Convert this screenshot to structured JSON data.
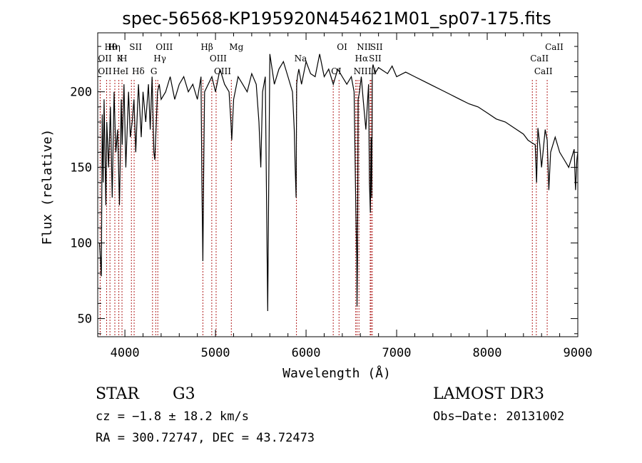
{
  "chart_data": {
    "type": "line",
    "title": "spec-56568-KP195920N454621M01_sp07-175.fits",
    "xlabel": "Wavelength (Å)",
    "ylabel": "Flux (relative)",
    "xlim": [
      3700,
      9000
    ],
    "ylim": [
      38,
      239
    ],
    "xticks": [
      4000,
      5000,
      6000,
      7000,
      8000,
      9000
    ],
    "yticks": [
      50,
      100,
      150,
      200
    ],
    "grid": false,
    "series": [
      {
        "name": "spectrum",
        "x": [
          3720,
          3740,
          3750,
          3760,
          3770,
          3790,
          3800,
          3820,
          3840,
          3860,
          3880,
          3900,
          3920,
          3940,
          3960,
          3970,
          3990,
          4010,
          4040,
          4060,
          4080,
          4100,
          4120,
          4150,
          4180,
          4200,
          4230,
          4260,
          4280,
          4300,
          4320,
          4330,
          4340,
          4360,
          4380,
          4400,
          4450,
          4500,
          4550,
          4600,
          4650,
          4700,
          4750,
          4800,
          4840,
          4850,
          4861,
          4870,
          4880,
          4920,
          4960,
          5000,
          5050,
          5100,
          5150,
          5170,
          5180,
          5200,
          5250,
          5300,
          5350,
          5400,
          5450,
          5480,
          5500,
          5520,
          5550,
          5570,
          5577,
          5585,
          5600,
          5650,
          5700,
          5750,
          5800,
          5850,
          5870,
          5880,
          5890,
          5896,
          5905,
          5920,
          5950,
          6000,
          6050,
          6100,
          6150,
          6200,
          6250,
          6300,
          6350,
          6400,
          6450,
          6500,
          6530,
          6550,
          6560,
          6563,
          6568,
          6575,
          6590,
          6610,
          6630,
          6660,
          6690,
          6700,
          6710,
          6717,
          6725,
          6731,
          6740,
          6760,
          6800,
          6850,
          6900,
          6950,
          7000,
          7100,
          7200,
          7300,
          7400,
          7500,
          7600,
          7700,
          7800,
          7900,
          8000,
          8100,
          8200,
          8300,
          8400,
          8450,
          8500,
          8530,
          8545,
          8560,
          8580,
          8600,
          8640,
          8662,
          8680,
          8700,
          8750,
          8800,
          8850,
          8900,
          8940,
          8960,
          8975,
          8990,
          9000
        ],
        "values": [
          100,
          78,
          185,
          140,
          195,
          125,
          180,
          150,
          190,
          130,
          200,
          160,
          175,
          125,
          195,
          165,
          205,
          150,
          200,
          170,
          180,
          195,
          160,
          205,
          170,
          200,
          180,
          205,
          175,
          210,
          160,
          155,
          170,
          200,
          205,
          195,
          200,
          210,
          195,
          205,
          210,
          200,
          205,
          195,
          210,
          140,
          88,
          150,
          200,
          205,
          210,
          200,
          215,
          205,
          200,
          180,
          168,
          195,
          210,
          205,
          200,
          212,
          205,
          180,
          150,
          200,
          210,
          90,
          55,
          120,
          225,
          205,
          215,
          220,
          210,
          200,
          175,
          150,
          130,
          205,
          210,
          215,
          205,
          220,
          212,
          210,
          225,
          210,
          215,
          205,
          215,
          210,
          205,
          210,
          200,
          120,
          90,
          58,
          90,
          195,
          200,
          210,
          195,
          175,
          205,
          140,
          120,
          170,
          130,
          215,
          218,
          212,
          216,
          214,
          212,
          217,
          210,
          213,
          210,
          207,
          204,
          201,
          198,
          195,
          192,
          190,
          186,
          182,
          180,
          176,
          172,
          168,
          166,
          165,
          140,
          176,
          165,
          150,
          175,
          168,
          135,
          160,
          170,
          160,
          155,
          150,
          158,
          162,
          135,
          155,
          160
        ],
        "stroke": "#000000"
      }
    ],
    "line_markers": [
      {
        "label": "Hθ",
        "wavelength": 3798
      },
      {
        "label": "OII",
        "wavelength": 3727
      },
      {
        "label": "OII",
        "wavelength": 3727
      },
      {
        "label": "Hη",
        "wavelength": 3835
      },
      {
        "label": "K",
        "wavelength": 3933
      },
      {
        "label": "HeI",
        "wavelength": 3889
      },
      {
        "label": "SII",
        "wavelength": 4072
      },
      {
        "label": "H",
        "wavelength": 3968
      },
      {
        "label": "Hδ",
        "wavelength": 4102
      },
      {
        "label": "OIII",
        "wavelength": 4363
      },
      {
        "label": "Hγ",
        "wavelength": 4340
      },
      {
        "label": "G",
        "wavelength": 4305
      },
      {
        "label": "Hβ",
        "wavelength": 4861
      },
      {
        "label": "OIII",
        "wavelength": 4959
      },
      {
        "label": "OIII",
        "wavelength": 5007
      },
      {
        "label": "Mg",
        "wavelength": 5175
      },
      {
        "label": "Na",
        "wavelength": 5894
      },
      {
        "label": "OI",
        "wavelength": 6300
      },
      {
        "label": "OI",
        "wavelength": 6364
      },
      {
        "label": "Hα",
        "wavelength": 6563
      },
      {
        "label": "NII",
        "wavelength": 6548
      },
      {
        "label": "NII",
        "wavelength": 6584
      },
      {
        "label": "SII",
        "wavelength": 6717
      },
      {
        "label": "Li",
        "wavelength": 6708
      },
      {
        "label": "SII",
        "wavelength": 6731
      },
      {
        "label": "CaII",
        "wavelength": 8498
      },
      {
        "label": "CaII",
        "wavelength": 8542
      },
      {
        "label": "CaII",
        "wavelength": 8662
      }
    ],
    "marker_color": "#b22222"
  },
  "info": {
    "class": "STAR",
    "subclass": "G3",
    "survey": "LAMOST DR3",
    "cz": "cz = −1.8 ± 18.2 km/s",
    "obs_date": "Obs−Date: 20131002",
    "radec": "RA = 300.72747, DEC =  43.72473"
  }
}
